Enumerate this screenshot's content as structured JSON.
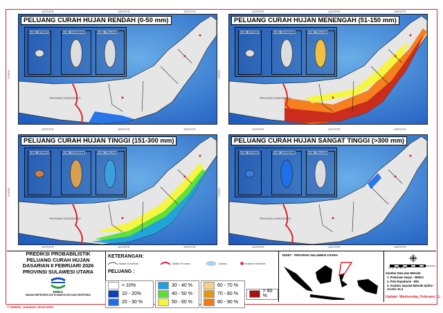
{
  "coords": {
    "lon": [
      "123°0'0\"E",
      "124°0'0\"E",
      "125°0'0\"E"
    ],
    "lat": "1°0'0\"N"
  },
  "panels": [
    {
      "title": "PELUANG CURAH HUJAN RENDAH (0-50 mm)"
    },
    {
      "title": "PELUANG CURAH HUJAN MENENGAH (51-150 mm)"
    },
    {
      "title": "PELUANG CURAH HUJAN TINGGI (151-300 mm)"
    },
    {
      "title": "PELUANG CURAH HUJAN SANGAT TINGGI (>300 mm)"
    }
  ],
  "inset_labels": [
    "KAB. SITARO",
    "KAB. SANGIHE",
    "KAB. TALAUD"
  ],
  "province_label": "PROVINSI GORONTALO",
  "title_block": {
    "lines": [
      "PREDIKSI PROBABILISTIK",
      "PELUANG CURAH HUJAN",
      "DASARIAN II FEBRUARI 2026",
      "PROVINSI SULAWESI UTARA"
    ],
    "logo_text": "BMKG",
    "agency": "BADAN METEOROLOGI KLIMATOLOGI DAN GEOFISIKA"
  },
  "legend": {
    "heading": "KETERANGAN:",
    "items": [
      "Batas Kota/Kab",
      "Batas Provinsi",
      "Danau",
      "Ibukota Kota/Kab"
    ],
    "peluang_label": "PELUANG :",
    "classes": [
      {
        "label": "< 10%",
        "color": "#ffffff"
      },
      {
        "label": "10 - 20%",
        "color": "#0a3fc4"
      },
      {
        "label": "20 - 30 %",
        "color": "#1e6fe8"
      },
      {
        "label": "30 - 40 %",
        "color": "#1ea0e0"
      },
      {
        "label": "40 - 50 %",
        "color": "#5ae02a"
      },
      {
        "label": "50 - 60 %",
        "color": "#f5f53a"
      },
      {
        "label": "60 - 70 %",
        "color": "#f7cf8a"
      },
      {
        "label": "70 - 80 %",
        "color": "#e8960e"
      },
      {
        "label": "80 - 90 %",
        "color": "#f47a14"
      },
      {
        "label": "> 90 %",
        "color": "#a80f14"
      }
    ]
  },
  "inset_map": {
    "title": "INSET - PROVINSI SULAWESI UTARA"
  },
  "scale": {
    "ticks": "0 5 10   20   30   40",
    "unit": "Kilometers"
  },
  "sources": {
    "heading": "Sumber Data dan Metode:",
    "items": [
      "1. Prakiraan Hujan - BMKG",
      "2. Peta Rupabumi - BIG",
      "3. Analisis Spasial Metode Spline - ArcGis 10.4"
    ],
    "update": "Update: Wednesday, February 11,"
  },
  "footer": "© Staklim_Sulawesi Utara-2026"
}
